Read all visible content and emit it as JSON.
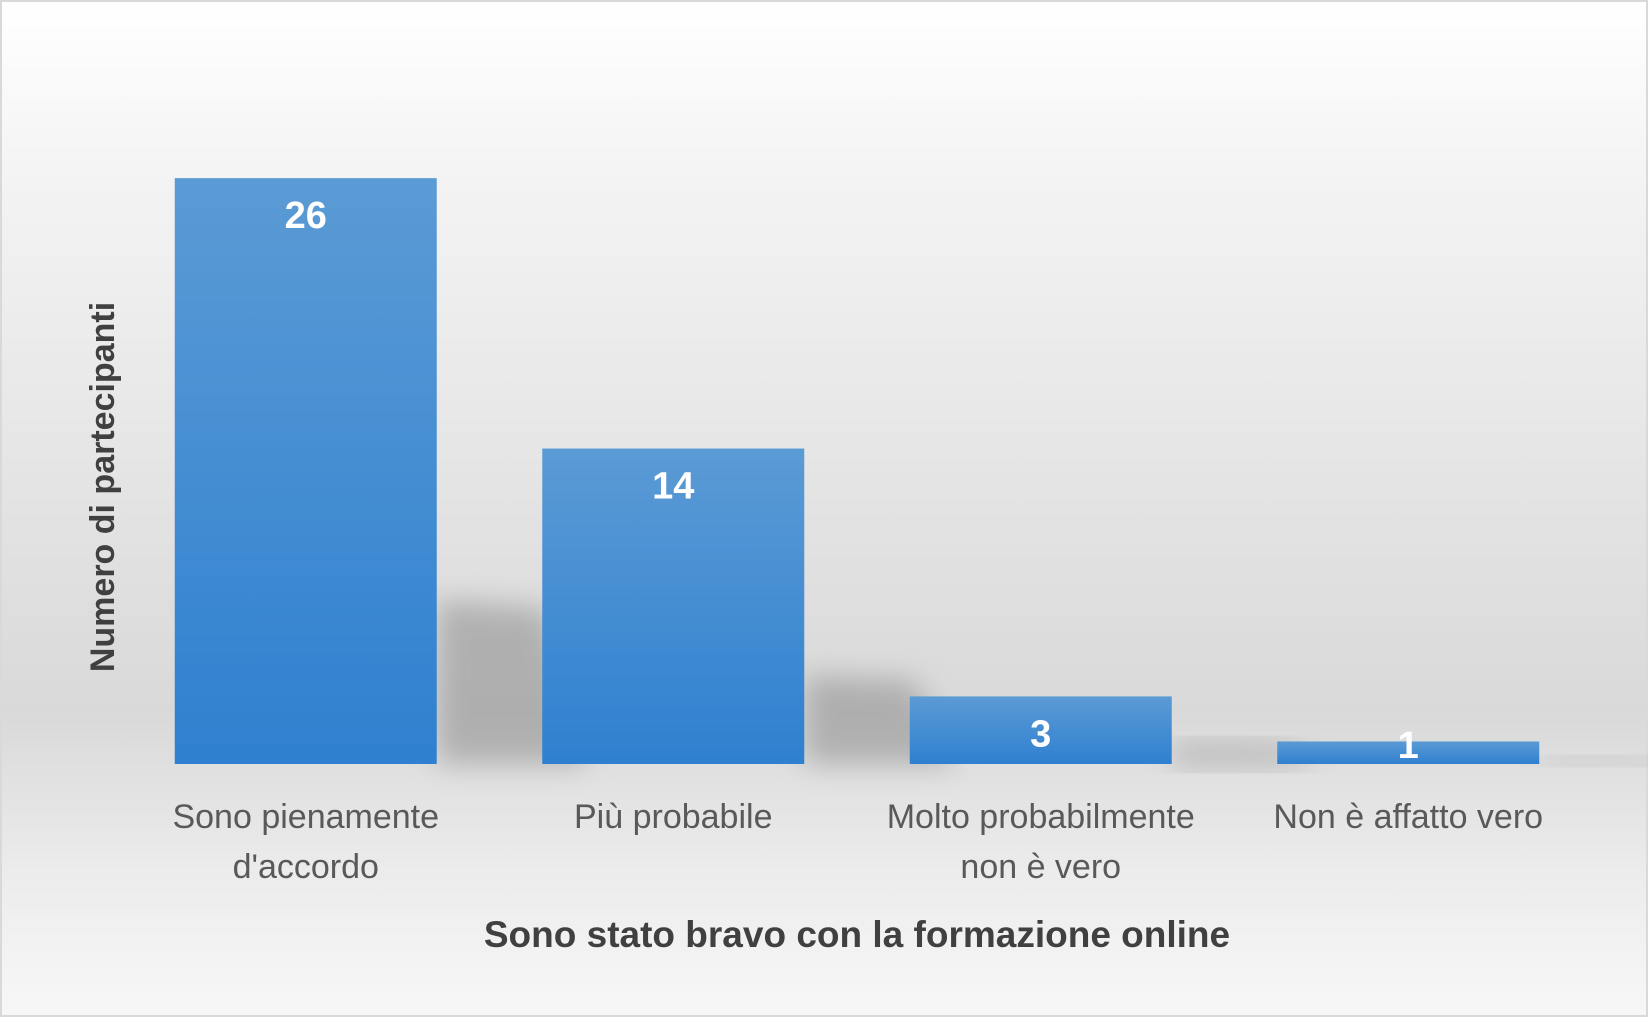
{
  "chart_data": {
    "type": "bar",
    "categories": [
      [
        "Sono pienamente",
        "d'accordo"
      ],
      [
        "Più probabile"
      ],
      [
        "Molto probabilmente",
        "non è vero"
      ],
      [
        "Non è affatto vero"
      ]
    ],
    "values": [
      26,
      14,
      3,
      1
    ],
    "xlabel": "Sono stato bravo con la formazione online",
    "ylabel": "Numero di partecipanti",
    "ylim": [
      0,
      30
    ],
    "grid": false,
    "legend": "none",
    "bar_color": "#3f87d0",
    "bar_color_top": "#5b9bd5",
    "label_color": "#ffffff",
    "text_color": "#595959",
    "title_color": "#404040"
  }
}
